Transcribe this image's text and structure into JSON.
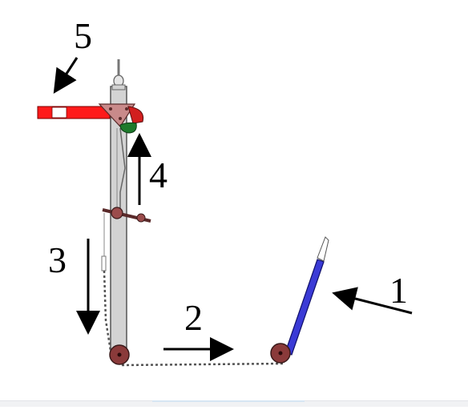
{
  "labels": {
    "one": "1",
    "two": "2",
    "three": "3",
    "four": "4",
    "five": "5"
  },
  "colors": {
    "post": "#cfcfcf",
    "arm_red": "#ff1a1a",
    "arm_white": "#ffffff",
    "lamp_red": "#d21f1f",
    "lamp_green": "#1e7a2c",
    "pulley": "#8a3a3a",
    "lever": "#3a3ad6",
    "wire": "#444444",
    "arrow": "#000000"
  }
}
